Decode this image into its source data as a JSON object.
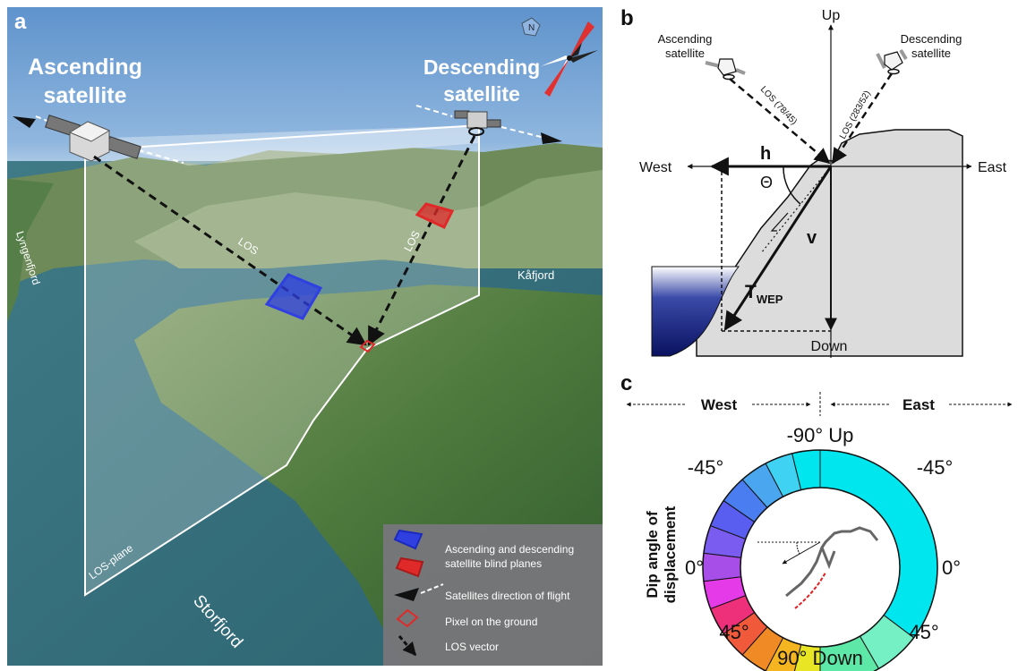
{
  "panel_a": {
    "letter": "a",
    "ascending_title_1": "Ascending",
    "ascending_title_2": "satellite",
    "descending_title_1": "Descending",
    "descending_title_2": "satellite",
    "compass_letter": "N",
    "los_left": "LOS",
    "los_right": "LOS",
    "place_lyngenfjord": "Lyngenfjord",
    "place_kafjord": "Kåfjord",
    "place_storfjord": "Storfjord",
    "los_plane": "LOS-plane",
    "legend": {
      "item1_line1": "Ascending and descending",
      "item1_line2": "satellite blind planes",
      "item2": "Satellites direction of flight",
      "item3": "Pixel on the ground",
      "item4": "LOS vector"
    },
    "colors": {
      "blind_blue": "#2f3fe0",
      "blind_red": "#e02a2a",
      "sky": "#6f9ed0",
      "legend_bg": "#77767a"
    }
  },
  "panel_b": {
    "letter": "b",
    "up": "Up",
    "down": "Down",
    "west": "West",
    "east": "East",
    "asc_1": "Ascending",
    "asc_2": "satellite",
    "desc_1": "Descending",
    "desc_2": "satellite",
    "los_asc": "LOS (78/45)",
    "los_desc": "LOS (283/52)",
    "h": "h",
    "v": "v",
    "theta": "Θ",
    "t_main": "T",
    "t_sub": "WEP"
  },
  "panel_c": {
    "letter": "c",
    "west": "West",
    "east": "East",
    "top": "-90° Up",
    "bottom": "90° Down",
    "left_upper": "-45°",
    "right_upper": "-45°",
    "left_mid": "0°",
    "right_mid": "0°",
    "left_lower": "45°",
    "right_lower": "45°",
    "ylabel_1": "Dip angle of",
    "ylabel_2": "displacement",
    "colors": {
      "east_half": "#00e6ee"
    }
  }
}
